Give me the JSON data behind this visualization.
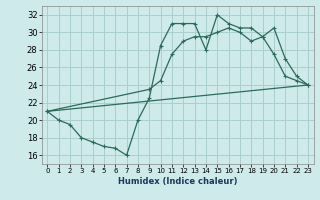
{
  "xlabel": "Humidex (Indice chaleur)",
  "bg_color": "#ceeaea",
  "grid_color": "#aacfcf",
  "line_color": "#2a6b5a",
  "xlim": [
    -0.5,
    23.5
  ],
  "ylim": [
    15.0,
    33.0
  ],
  "xticks": [
    0,
    1,
    2,
    3,
    4,
    5,
    6,
    7,
    8,
    9,
    10,
    11,
    12,
    13,
    14,
    15,
    16,
    17,
    18,
    19,
    20,
    21,
    22,
    23
  ],
  "yticks": [
    16,
    18,
    20,
    22,
    24,
    26,
    28,
    30,
    32
  ],
  "line1_x": [
    0,
    1,
    2,
    3,
    4,
    5,
    6,
    7,
    8,
    9,
    10,
    11,
    12,
    13,
    14,
    15,
    16,
    17,
    18,
    19,
    20,
    21,
    22,
    23
  ],
  "line1_y": [
    21.0,
    20.0,
    19.5,
    18.0,
    17.5,
    17.0,
    16.8,
    16.0,
    20.0,
    22.5,
    28.5,
    31.0,
    31.0,
    31.0,
    28.0,
    32.0,
    31.0,
    30.5,
    30.5,
    29.5,
    27.5,
    25.0,
    24.5,
    24.0
  ],
  "line2_x": [
    0,
    9,
    10,
    11,
    12,
    13,
    14,
    15,
    16,
    17,
    18,
    19,
    20,
    21,
    22,
    23
  ],
  "line2_y": [
    21.0,
    23.5,
    24.5,
    27.5,
    29.0,
    29.5,
    29.5,
    30.0,
    30.5,
    30.0,
    29.0,
    29.5,
    30.5,
    27.0,
    25.0,
    24.0
  ],
  "line3_x": [
    0,
    23
  ],
  "line3_y": [
    21.0,
    24.0
  ]
}
